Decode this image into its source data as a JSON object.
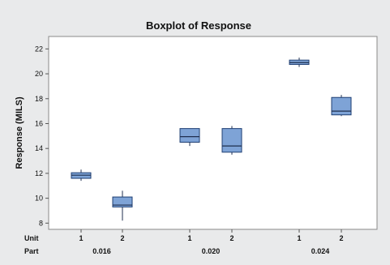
{
  "chart_data": {
    "type": "boxplot",
    "title": "Boxplot of Response",
    "ylabel": "Response (MILS)",
    "ylim": [
      7.5,
      23
    ],
    "yticks": [
      8,
      10,
      12,
      14,
      16,
      18,
      20,
      22
    ],
    "x_rows": [
      "Unit",
      "Part"
    ],
    "parts": [
      "0.016",
      "0.020",
      "0.024"
    ],
    "boxes": [
      {
        "part": "0.016",
        "unit": "1",
        "min": 11.4,
        "q1": 11.6,
        "median": 11.85,
        "q3": 12.05,
        "max": 12.3
      },
      {
        "part": "0.016",
        "unit": "2",
        "min": 8.2,
        "q1": 9.3,
        "median": 9.45,
        "q3": 10.1,
        "max": 10.6
      },
      {
        "part": "0.020",
        "unit": "1",
        "min": 14.2,
        "q1": 14.5,
        "median": 14.95,
        "q3": 15.6,
        "max": 15.6
      },
      {
        "part": "0.020",
        "unit": "2",
        "min": 13.5,
        "q1": 13.7,
        "median": 14.2,
        "q3": 15.6,
        "max": 15.8
      },
      {
        "part": "0.024",
        "unit": "1",
        "min": 20.55,
        "q1": 20.75,
        "median": 20.9,
        "q3": 21.1,
        "max": 21.3
      },
      {
        "part": "0.024",
        "unit": "2",
        "min": 16.6,
        "q1": 16.7,
        "median": 17.0,
        "q3": 18.1,
        "max": 18.3
      }
    ],
    "box_color": "#7ea3d6",
    "box_edge_color": "#1f3f73",
    "plot_bg": "#ffffff",
    "frame_bg": "#e9eaeb",
    "grid": false
  }
}
